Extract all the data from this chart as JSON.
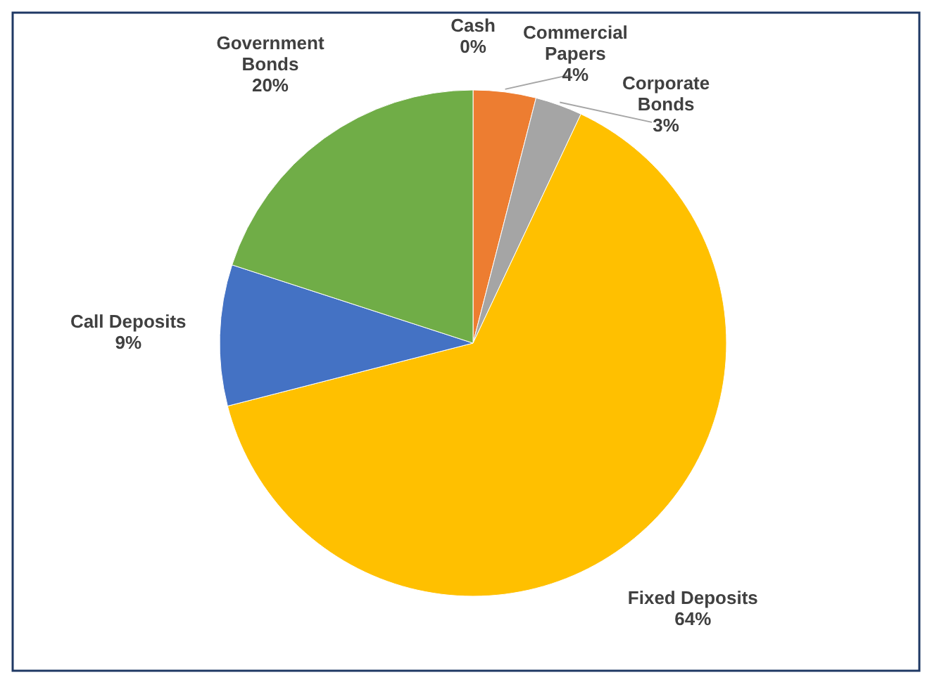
{
  "chart_data": {
    "type": "pie",
    "categories": [
      "Cash",
      "Commercial Papers",
      "Corporate Bonds",
      "Fixed Deposits",
      "Call Deposits",
      "Government Bonds"
    ],
    "values": [
      0,
      4,
      3,
      64,
      9,
      20
    ],
    "value_labels": [
      "0%",
      "4%",
      "3%",
      "64%",
      "9%",
      "20%"
    ],
    "colors": [
      "#4472c4",
      "#ed7d31",
      "#a5a5a5",
      "#ffc000",
      "#4472c4",
      "#70ad47"
    ],
    "legend": false
  }
}
